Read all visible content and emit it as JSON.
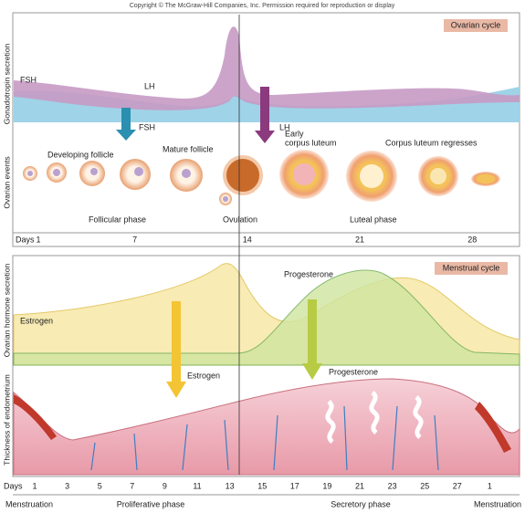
{
  "copyright": "Copyright © The McGraw-Hill Companies, Inc. Permission required for reproduction or display",
  "ovarian_panel": {
    "badge": "Ovarian cycle",
    "gonadotropin_label": "Gonadotropin secretion",
    "fsh_curve": "FSH",
    "lh_curve": "LH",
    "fsh_arrow": "FSH",
    "lh_arrow": "LH",
    "events_label": "Ovarian events",
    "developing_follicle": "Developing follicle",
    "mature_follicle": "Mature follicle",
    "early_corpus_luteum": [
      "Early",
      "corpus luteum"
    ],
    "corpus_luteum_regresses": "Corpus luteum regresses",
    "follicular_phase": "Follicular phase",
    "ovulation": "Ovulation",
    "luteal_phase": "Luteal phase",
    "days_label": "Days",
    "days": [
      1,
      7,
      14,
      21,
      28
    ]
  },
  "menstrual_panel": {
    "badge": "Menstrual cycle",
    "hormone_label": "Ovarian hormone secretion",
    "progesterone_curve": "Progesterone",
    "estrogen_curve": "Estrogen",
    "estrogen_arrow": "Estrogen",
    "progesterone_arrow": "Progesterone",
    "endometrium_label": "Thickness of endometrium",
    "days_label": "Days",
    "days": [
      1,
      3,
      5,
      7,
      9,
      11,
      13,
      15,
      17,
      19,
      21,
      23,
      25,
      27,
      1
    ],
    "phases": [
      "Menstruation",
      "Proliferative phase",
      "Secretory phase",
      "Menstruation"
    ]
  }
}
